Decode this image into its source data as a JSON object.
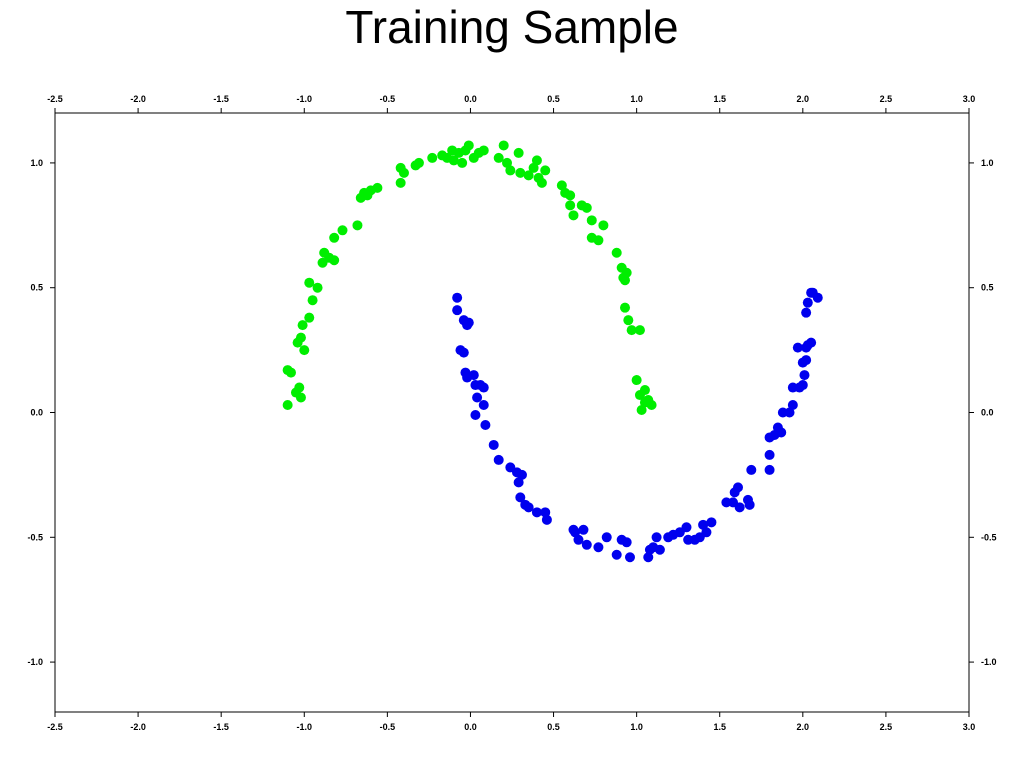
{
  "chart_data": {
    "type": "scatter",
    "title": "Training Sample",
    "xlabel": "",
    "ylabel": "",
    "xlim": [
      -2.5,
      3.0
    ],
    "ylim": [
      -1.2,
      1.2
    ],
    "xticks": [
      "-2.5",
      "-2.0",
      "-1.5",
      "-1.0",
      "-0.5",
      "0.0",
      "0.5",
      "1.0",
      "1.5",
      "2.0",
      "2.5",
      "3.0"
    ],
    "xtick_values": [
      -2.5,
      -2.0,
      -1.5,
      -1.0,
      -0.5,
      0.0,
      0.5,
      1.0,
      1.5,
      2.0,
      2.5,
      3.0
    ],
    "yticks": [
      "-1.0",
      "-0.5",
      "0.0",
      "0.5",
      "1.0"
    ],
    "ytick_values": [
      -1.0,
      -0.5,
      0.0,
      0.5,
      1.0
    ],
    "grid": false,
    "legend": "none",
    "series": [
      {
        "color": "#00ee00",
        "points": [
          [
            -1.1,
            0.03
          ],
          [
            -1.1,
            0.17
          ],
          [
            -1.08,
            0.16
          ],
          [
            -1.05,
            0.08
          ],
          [
            -1.03,
            0.1
          ],
          [
            -1.02,
            0.06
          ],
          [
            -1.04,
            0.28
          ],
          [
            -1.02,
            0.3
          ],
          [
            -1.0,
            0.25
          ],
          [
            -1.01,
            0.35
          ],
          [
            -0.97,
            0.38
          ],
          [
            -0.95,
            0.45
          ],
          [
            -0.97,
            0.52
          ],
          [
            -0.92,
            0.5
          ],
          [
            -0.89,
            0.6
          ],
          [
            -0.88,
            0.64
          ],
          [
            -0.85,
            0.62
          ],
          [
            -0.82,
            0.61
          ],
          [
            -0.82,
            0.7
          ],
          [
            -0.77,
            0.73
          ],
          [
            -0.68,
            0.75
          ],
          [
            -0.66,
            0.86
          ],
          [
            -0.64,
            0.88
          ],
          [
            -0.62,
            0.87
          ],
          [
            -0.6,
            0.89
          ],
          [
            -0.56,
            0.9
          ],
          [
            -0.42,
            0.98
          ],
          [
            -0.4,
            0.96
          ],
          [
            -0.42,
            0.92
          ],
          [
            -0.33,
            0.99
          ],
          [
            -0.31,
            1.0
          ],
          [
            -0.23,
            1.02
          ],
          [
            -0.17,
            1.03
          ],
          [
            -0.14,
            1.02
          ],
          [
            -0.11,
            1.05
          ],
          [
            -0.1,
            1.01
          ],
          [
            -0.07,
            1.04
          ],
          [
            -0.05,
            1.0
          ],
          [
            -0.03,
            1.05
          ],
          [
            -0.01,
            1.07
          ],
          [
            0.02,
            1.02
          ],
          [
            0.05,
            1.04
          ],
          [
            0.08,
            1.05
          ],
          [
            0.17,
            1.02
          ],
          [
            0.2,
            1.07
          ],
          [
            0.22,
            1.0
          ],
          [
            0.24,
            0.97
          ],
          [
            0.29,
            1.04
          ],
          [
            0.3,
            0.96
          ],
          [
            0.35,
            0.95
          ],
          [
            0.38,
            0.98
          ],
          [
            0.4,
            1.01
          ],
          [
            0.41,
            0.94
          ],
          [
            0.43,
            0.92
          ],
          [
            0.45,
            0.97
          ],
          [
            0.55,
            0.91
          ],
          [
            0.57,
            0.88
          ],
          [
            0.6,
            0.87
          ],
          [
            0.6,
            0.83
          ],
          [
            0.62,
            0.79
          ],
          [
            0.67,
            0.83
          ],
          [
            0.7,
            0.82
          ],
          [
            0.73,
            0.77
          ],
          [
            0.73,
            0.7
          ],
          [
            0.77,
            0.69
          ],
          [
            0.8,
            0.75
          ],
          [
            0.88,
            0.64
          ],
          [
            0.91,
            0.58
          ],
          [
            0.92,
            0.54
          ],
          [
            0.93,
            0.53
          ],
          [
            0.94,
            0.56
          ],
          [
            0.93,
            0.42
          ],
          [
            0.95,
            0.37
          ],
          [
            0.97,
            0.33
          ],
          [
            1.02,
            0.33
          ],
          [
            1.0,
            0.13
          ],
          [
            1.02,
            0.07
          ],
          [
            1.05,
            0.09
          ],
          [
            1.05,
            0.04
          ],
          [
            1.07,
            0.05
          ],
          [
            1.03,
            0.01
          ],
          [
            1.09,
            0.03
          ]
        ]
      },
      {
        "color": "#0000ee",
        "points": [
          [
            -0.08,
            0.46
          ],
          [
            -0.08,
            0.41
          ],
          [
            -0.04,
            0.37
          ],
          [
            -0.02,
            0.35
          ],
          [
            -0.01,
            0.36
          ],
          [
            -0.06,
            0.25
          ],
          [
            -0.04,
            0.24
          ],
          [
            -0.03,
            0.16
          ],
          [
            -0.02,
            0.14
          ],
          [
            0.02,
            0.15
          ],
          [
            0.03,
            0.11
          ],
          [
            0.06,
            0.11
          ],
          [
            0.08,
            0.1
          ],
          [
            0.04,
            0.06
          ],
          [
            0.08,
            0.03
          ],
          [
            0.03,
            -0.01
          ],
          [
            0.09,
            -0.05
          ],
          [
            0.14,
            -0.13
          ],
          [
            0.17,
            -0.19
          ],
          [
            0.24,
            -0.22
          ],
          [
            0.28,
            -0.24
          ],
          [
            0.31,
            -0.25
          ],
          [
            0.29,
            -0.28
          ],
          [
            0.3,
            -0.34
          ],
          [
            0.33,
            -0.37
          ],
          [
            0.35,
            -0.38
          ],
          [
            0.4,
            -0.4
          ],
          [
            0.45,
            -0.4
          ],
          [
            0.46,
            -0.43
          ],
          [
            0.62,
            -0.47
          ],
          [
            0.63,
            -0.48
          ],
          [
            0.68,
            -0.47
          ],
          [
            0.65,
            -0.51
          ],
          [
            0.7,
            -0.53
          ],
          [
            0.77,
            -0.54
          ],
          [
            0.82,
            -0.5
          ],
          [
            0.88,
            -0.57
          ],
          [
            0.91,
            -0.51
          ],
          [
            0.94,
            -0.52
          ],
          [
            0.96,
            -0.58
          ],
          [
            1.07,
            -0.58
          ],
          [
            1.08,
            -0.55
          ],
          [
            1.1,
            -0.54
          ],
          [
            1.12,
            -0.5
          ],
          [
            1.14,
            -0.55
          ],
          [
            1.19,
            -0.5
          ],
          [
            1.22,
            -0.49
          ],
          [
            1.26,
            -0.48
          ],
          [
            1.3,
            -0.46
          ],
          [
            1.31,
            -0.51
          ],
          [
            1.35,
            -0.51
          ],
          [
            1.38,
            -0.5
          ],
          [
            1.4,
            -0.45
          ],
          [
            1.42,
            -0.48
          ],
          [
            1.45,
            -0.44
          ],
          [
            1.54,
            -0.36
          ],
          [
            1.58,
            -0.36
          ],
          [
            1.59,
            -0.32
          ],
          [
            1.61,
            -0.3
          ],
          [
            1.62,
            -0.38
          ],
          [
            1.67,
            -0.35
          ],
          [
            1.68,
            -0.37
          ],
          [
            1.69,
            -0.23
          ],
          [
            1.8,
            -0.23
          ],
          [
            1.8,
            -0.17
          ],
          [
            1.8,
            -0.1
          ],
          [
            1.83,
            -0.09
          ],
          [
            1.85,
            -0.06
          ],
          [
            1.87,
            -0.08
          ],
          [
            1.88,
            0.0
          ],
          [
            1.92,
            0.0
          ],
          [
            1.94,
            0.03
          ],
          [
            1.94,
            0.1
          ],
          [
            1.98,
            0.1
          ],
          [
            1.97,
            0.26
          ],
          [
            2.0,
            0.11
          ],
          [
            2.0,
            0.2
          ],
          [
            2.01,
            0.15
          ],
          [
            2.02,
            0.21
          ],
          [
            2.02,
            0.26
          ],
          [
            2.03,
            0.27
          ],
          [
            2.05,
            0.28
          ],
          [
            2.02,
            0.4
          ],
          [
            2.03,
            0.44
          ],
          [
            2.05,
            0.48
          ],
          [
            2.06,
            0.48
          ],
          [
            2.09,
            0.46
          ]
        ]
      }
    ]
  }
}
